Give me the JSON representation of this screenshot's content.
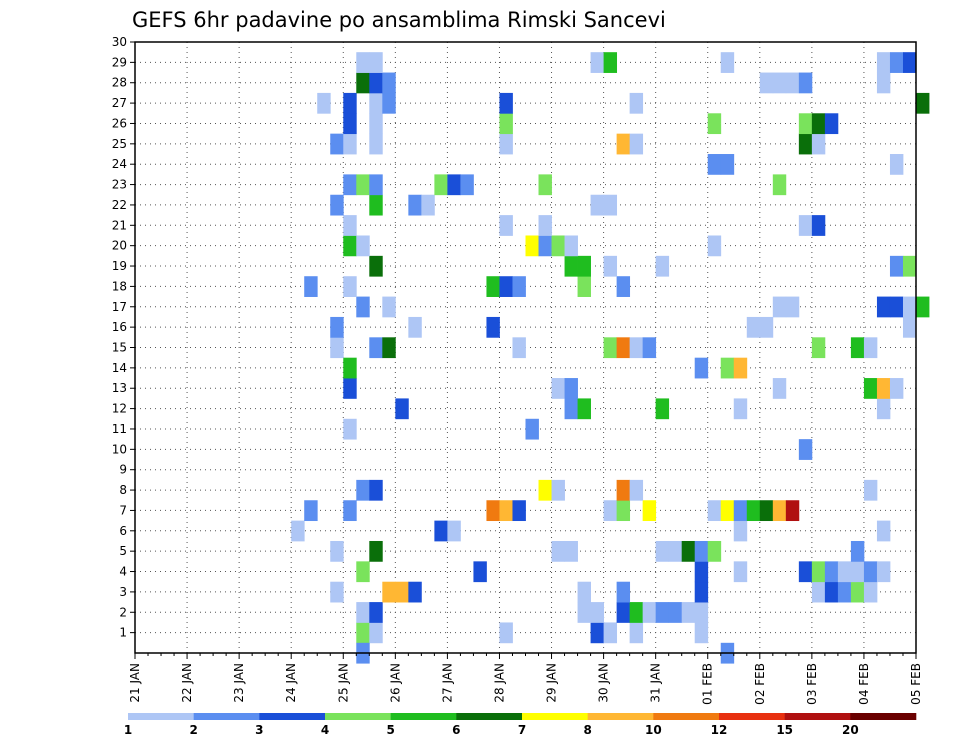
{
  "chart_data": {
    "type": "heatmap",
    "title": "GEFS 6hr padavine po ansamblima Rimski Sancevi",
    "xlabel": "",
    "ylabel": "",
    "x_start_date": "21 JAN",
    "x_steps_total": 60,
    "x_step_hours": 6,
    "x_tick_labels": [
      "21 JAN",
      "22 JAN",
      "23 JAN",
      "24 JAN",
      "25 JAN",
      "26 JAN",
      "27 JAN",
      "28 JAN",
      "29 JAN",
      "30 JAN",
      "31 JAN",
      "01 FEB",
      "02 FEB",
      "03 FEB",
      "04 FEB",
      "05 FEB"
    ],
    "y_tick_labels": [
      "1",
      "2",
      "3",
      "4",
      "5",
      "6",
      "7",
      "8",
      "9",
      "10",
      "11",
      "12",
      "13",
      "14",
      "15",
      "16",
      "17",
      "18",
      "19",
      "20",
      "21",
      "22",
      "23",
      "24",
      "25",
      "26",
      "27",
      "28",
      "29",
      "30"
    ],
    "ylim": [
      0,
      30
    ],
    "grid": true,
    "legend_position": "bottom",
    "legend": {
      "labels": [
        "1",
        "2",
        "3",
        "4",
        "5",
        "6",
        "7",
        "8",
        "10",
        "12",
        "15",
        "20"
      ],
      "colors": [
        "#aec6f5",
        "#5b8ef0",
        "#1a4fd8",
        "#7ae35c",
        "#1fbd1f",
        "#0a6f0a",
        "#ffff00",
        "#ffb733",
        "#f07a10",
        "#e83010",
        "#b01010",
        "#6a0000"
      ]
    },
    "colors": [
      "#aec6f5",
      "#5b8ef0",
      "#1a4fd8",
      "#7ae35c",
      "#1fbd1f",
      "#0a6f0a",
      "#ffff00",
      "#ffb733",
      "#f07a10",
      "#e83010",
      "#b01010",
      "#6a0000"
    ],
    "cells_format": "[time_step_index (0 = 21 JAN 00z), ensemble_member, color_class_index]",
    "cells": [
      [
        17,
        1,
        3
      ],
      [
        18,
        1,
        0
      ],
      [
        28,
        1,
        0
      ],
      [
        35,
        1,
        2
      ],
      [
        36,
        1,
        0
      ],
      [
        38,
        1,
        0
      ],
      [
        43,
        1,
        0
      ],
      [
        17,
        0,
        1
      ],
      [
        45,
        0,
        1
      ],
      [
        17,
        2,
        0
      ],
      [
        18,
        2,
        2
      ],
      [
        34,
        2,
        0
      ],
      [
        35,
        2,
        0
      ],
      [
        37,
        2,
        2
      ],
      [
        38,
        2,
        4
      ],
      [
        39,
        2,
        0
      ],
      [
        40,
        2,
        1
      ],
      [
        41,
        2,
        1
      ],
      [
        42,
        2,
        0
      ],
      [
        43,
        2,
        0
      ],
      [
        15,
        3,
        0
      ],
      [
        19,
        3,
        7
      ],
      [
        20,
        3,
        7
      ],
      [
        21,
        3,
        2
      ],
      [
        34,
        3,
        0
      ],
      [
        37,
        3,
        1
      ],
      [
        43,
        3,
        2
      ],
      [
        52,
        3,
        0
      ],
      [
        53,
        3,
        2
      ],
      [
        54,
        3,
        1
      ],
      [
        55,
        3,
        3
      ],
      [
        56,
        3,
        0
      ],
      [
        17,
        4,
        3
      ],
      [
        26,
        4,
        2
      ],
      [
        43,
        4,
        2
      ],
      [
        46,
        4,
        0
      ],
      [
        51,
        4,
        2
      ],
      [
        52,
        4,
        3
      ],
      [
        53,
        4,
        1
      ],
      [
        54,
        4,
        0
      ],
      [
        55,
        4,
        0
      ],
      [
        56,
        4,
        1
      ],
      [
        57,
        4,
        0
      ],
      [
        15,
        5,
        0
      ],
      [
        18,
        5,
        5
      ],
      [
        32,
        5,
        0
      ],
      [
        33,
        5,
        0
      ],
      [
        40,
        5,
        0
      ],
      [
        41,
        5,
        0
      ],
      [
        42,
        5,
        5
      ],
      [
        43,
        5,
        1
      ],
      [
        44,
        5,
        3
      ],
      [
        55,
        5,
        1
      ],
      [
        12,
        6,
        0
      ],
      [
        23,
        6,
        2
      ],
      [
        24,
        6,
        0
      ],
      [
        46,
        6,
        0
      ],
      [
        57,
        6,
        0
      ],
      [
        13,
        7,
        1
      ],
      [
        16,
        7,
        1
      ],
      [
        27,
        7,
        8
      ],
      [
        28,
        7,
        7
      ],
      [
        29,
        7,
        2
      ],
      [
        36,
        7,
        0
      ],
      [
        37,
        7,
        3
      ],
      [
        39,
        7,
        6
      ],
      [
        44,
        7,
        0
      ],
      [
        45,
        7,
        6
      ],
      [
        46,
        7,
        1
      ],
      [
        47,
        7,
        4
      ],
      [
        48,
        7,
        5
      ],
      [
        49,
        7,
        7
      ],
      [
        50,
        7,
        10
      ],
      [
        17,
        8,
        1
      ],
      [
        18,
        8,
        2
      ],
      [
        31,
        8,
        6
      ],
      [
        32,
        8,
        0
      ],
      [
        37,
        8,
        8
      ],
      [
        38,
        8,
        0
      ],
      [
        56,
        8,
        0
      ],
      [
        51,
        10,
        1
      ],
      [
        16,
        11,
        0
      ],
      [
        30,
        11,
        1
      ],
      [
        20,
        12,
        2
      ],
      [
        33,
        12,
        1
      ],
      [
        34,
        12,
        4
      ],
      [
        40,
        12,
        4
      ],
      [
        46,
        12,
        0
      ],
      [
        57,
        12,
        0
      ],
      [
        16,
        13,
        2
      ],
      [
        32,
        13,
        0
      ],
      [
        33,
        13,
        1
      ],
      [
        49,
        13,
        0
      ],
      [
        56,
        13,
        4
      ],
      [
        57,
        13,
        7
      ],
      [
        58,
        13,
        0
      ],
      [
        16,
        14,
        4
      ],
      [
        43,
        14,
        1
      ],
      [
        45,
        14,
        3
      ],
      [
        46,
        14,
        7
      ],
      [
        15,
        15,
        0
      ],
      [
        18,
        15,
        1
      ],
      [
        19,
        15,
        5
      ],
      [
        29,
        15,
        0
      ],
      [
        36,
        15,
        3
      ],
      [
        37,
        15,
        8
      ],
      [
        38,
        15,
        0
      ],
      [
        39,
        15,
        1
      ],
      [
        52,
        15,
        3
      ],
      [
        55,
        15,
        4
      ],
      [
        56,
        15,
        0
      ],
      [
        15,
        16,
        1
      ],
      [
        21,
        16,
        0
      ],
      [
        27,
        16,
        2
      ],
      [
        47,
        16,
        0
      ],
      [
        48,
        16,
        0
      ],
      [
        59,
        16,
        0
      ],
      [
        17,
        17,
        1
      ],
      [
        19,
        17,
        0
      ],
      [
        49,
        17,
        0
      ],
      [
        50,
        17,
        0
      ],
      [
        57,
        17,
        2
      ],
      [
        58,
        17,
        2
      ],
      [
        59,
        17,
        0
      ],
      [
        60,
        17,
        4
      ],
      [
        13,
        18,
        1
      ],
      [
        16,
        18,
        0
      ],
      [
        27,
        18,
        4
      ],
      [
        28,
        18,
        2
      ],
      [
        29,
        18,
        1
      ],
      [
        34,
        18,
        3
      ],
      [
        37,
        18,
        1
      ],
      [
        18,
        19,
        5
      ],
      [
        33,
        19,
        4
      ],
      [
        34,
        19,
        4
      ],
      [
        36,
        19,
        0
      ],
      [
        40,
        19,
        0
      ],
      [
        58,
        19,
        1
      ],
      [
        59,
        19,
        3
      ],
      [
        16,
        20,
        4
      ],
      [
        17,
        20,
        0
      ],
      [
        30,
        20,
        6
      ],
      [
        31,
        20,
        1
      ],
      [
        32,
        20,
        3
      ],
      [
        33,
        20,
        0
      ],
      [
        44,
        20,
        0
      ],
      [
        16,
        21,
        0
      ],
      [
        28,
        21,
        0
      ],
      [
        31,
        21,
        0
      ],
      [
        51,
        21,
        0
      ],
      [
        52,
        21,
        2
      ],
      [
        15,
        22,
        1
      ],
      [
        18,
        22,
        4
      ],
      [
        21,
        22,
        1
      ],
      [
        22,
        22,
        0
      ],
      [
        35,
        22,
        0
      ],
      [
        36,
        22,
        0
      ],
      [
        16,
        23,
        1
      ],
      [
        17,
        23,
        3
      ],
      [
        18,
        23,
        1
      ],
      [
        23,
        23,
        3
      ],
      [
        24,
        23,
        2
      ],
      [
        25,
        23,
        1
      ],
      [
        31,
        23,
        3
      ],
      [
        49,
        23,
        3
      ],
      [
        44,
        24,
        1
      ],
      [
        45,
        24,
        1
      ],
      [
        58,
        24,
        0
      ],
      [
        15,
        25,
        1
      ],
      [
        16,
        25,
        0
      ],
      [
        18,
        25,
        0
      ],
      [
        28,
        25,
        0
      ],
      [
        37,
        25,
        7
      ],
      [
        38,
        25,
        0
      ],
      [
        51,
        25,
        5
      ],
      [
        52,
        25,
        0
      ],
      [
        16,
        26,
        2
      ],
      [
        18,
        26,
        0
      ],
      [
        28,
        26,
        3
      ],
      [
        44,
        26,
        3
      ],
      [
        51,
        26,
        3
      ],
      [
        52,
        26,
        5
      ],
      [
        53,
        26,
        2
      ],
      [
        14,
        27,
        0
      ],
      [
        16,
        27,
        2
      ],
      [
        18,
        27,
        0
      ],
      [
        19,
        27,
        1
      ],
      [
        28,
        27,
        2
      ],
      [
        38,
        27,
        0
      ],
      [
        60,
        27,
        5
      ],
      [
        17,
        28,
        5
      ],
      [
        18,
        28,
        2
      ],
      [
        19,
        28,
        1
      ],
      [
        48,
        28,
        0
      ],
      [
        49,
        28,
        0
      ],
      [
        50,
        28,
        0
      ],
      [
        51,
        28,
        1
      ],
      [
        57,
        28,
        0
      ],
      [
        17,
        29,
        0
      ],
      [
        18,
        29,
        0
      ],
      [
        35,
        29,
        0
      ],
      [
        36,
        29,
        4
      ],
      [
        45,
        29,
        0
      ],
      [
        57,
        29,
        0
      ],
      [
        58,
        29,
        1
      ],
      [
        59,
        29,
        2
      ]
    ]
  }
}
